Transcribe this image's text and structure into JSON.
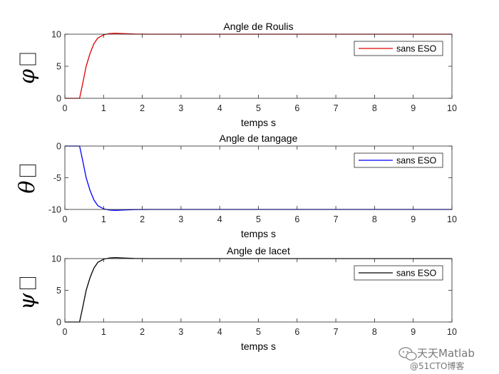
{
  "chart_data": [
    {
      "type": "line",
      "title": "Angle de Roulis",
      "xlabel": "temps s",
      "ylabel": "φ □",
      "xlim": [
        0,
        10
      ],
      "ylim": [
        0,
        10
      ],
      "xticks": [
        "0",
        "1",
        "2",
        "3",
        "4",
        "5",
        "6",
        "7",
        "8",
        "9",
        "10"
      ],
      "yticks": [
        "0",
        "5",
        "10"
      ],
      "legend": "top-right",
      "series": [
        {
          "name": "sans ESO",
          "color": "#e00000",
          "x": [
            0,
            0.2,
            0.38,
            0.45,
            0.55,
            0.65,
            0.75,
            0.85,
            1.0,
            1.15,
            1.3,
            1.5,
            1.8,
            2.2,
            3,
            10
          ],
          "y": [
            0,
            0,
            0,
            2.0,
            5.0,
            7.0,
            8.5,
            9.4,
            9.9,
            10.1,
            10.15,
            10.1,
            10.02,
            10.0,
            10.0,
            10.0
          ]
        }
      ]
    },
    {
      "type": "line",
      "title": "Angle de tangage",
      "xlabel": "temps s",
      "ylabel": "θ □",
      "xlim": [
        0,
        10
      ],
      "ylim": [
        -10,
        0
      ],
      "xticks": [
        "0",
        "1",
        "2",
        "3",
        "4",
        "5",
        "6",
        "7",
        "8",
        "9",
        "10"
      ],
      "yticks": [
        "0",
        "-5",
        "-10"
      ],
      "legend": "top-right",
      "series": [
        {
          "name": "sans ESO",
          "color": "#0000ff",
          "x": [
            0,
            0.2,
            0.38,
            0.45,
            0.55,
            0.65,
            0.75,
            0.85,
            1.0,
            1.15,
            1.3,
            1.5,
            1.8,
            2.2,
            3,
            10
          ],
          "y": [
            0,
            0,
            0,
            -2.0,
            -5.0,
            -7.0,
            -8.5,
            -9.4,
            -9.9,
            -10.1,
            -10.15,
            -10.1,
            -10.02,
            -10.0,
            -10.0,
            -10.0
          ]
        }
      ]
    },
    {
      "type": "line",
      "title": "Angle de lacet",
      "xlabel": "temps s",
      "ylabel": "ψ □",
      "xlim": [
        0,
        10
      ],
      "ylim": [
        0,
        10
      ],
      "xticks": [
        "0",
        "1",
        "2",
        "3",
        "4",
        "5",
        "6",
        "7",
        "8",
        "9",
        "10"
      ],
      "yticks": [
        "0",
        "5",
        "10"
      ],
      "legend": "top-right",
      "series": [
        {
          "name": "sans ESO",
          "color": "#000000",
          "x": [
            0,
            0.2,
            0.38,
            0.45,
            0.55,
            0.65,
            0.75,
            0.85,
            1.0,
            1.15,
            1.3,
            1.5,
            1.8,
            2.2,
            3,
            10
          ],
          "y": [
            0,
            0,
            0,
            2.0,
            5.0,
            7.0,
            8.5,
            9.4,
            9.9,
            10.1,
            10.15,
            10.1,
            10.02,
            10.0,
            10.0,
            10.0
          ]
        }
      ]
    }
  ],
  "watermark": {
    "line1": "天天Matlab",
    "line2": "@51CTO博客"
  }
}
